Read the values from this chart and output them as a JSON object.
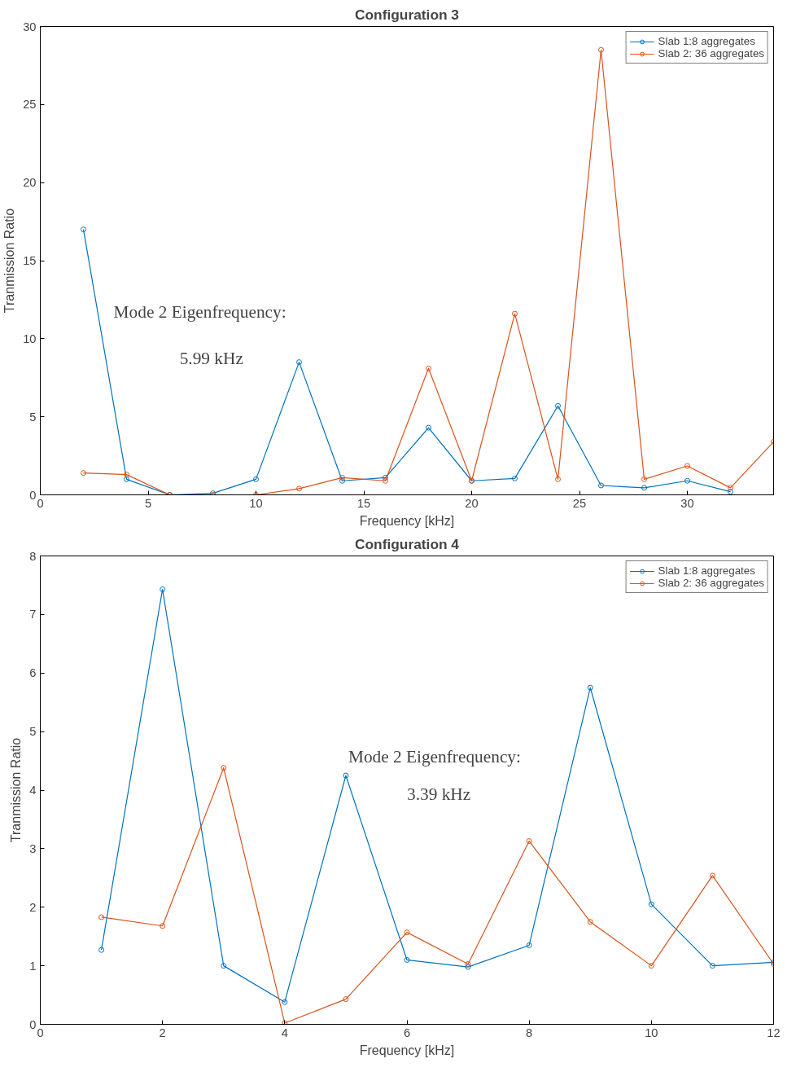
{
  "chart_data": [
    {
      "type": "line",
      "title": "Configuration 3",
      "xlabel": "Frequency [kHz]",
      "ylabel": "Tranmission Ratio",
      "x": [
        2,
        4,
        6,
        8,
        10,
        12,
        14,
        16,
        18,
        20,
        22,
        24,
        26,
        28,
        30,
        32,
        34
      ],
      "series": [
        {
          "name": "Slab 1:8 aggregates",
          "color": "#0072bd",
          "values": [
            17.0,
            1.0,
            0.0,
            0.1,
            1.0,
            8.5,
            0.9,
            1.1,
            4.3,
            0.9,
            1.05,
            5.7,
            0.6,
            0.45,
            0.9,
            0.2,
            null
          ]
        },
        {
          "name": "Slab 2: 36 aggregates",
          "color": "#d95319",
          "values": [
            1.4,
            1.3,
            0.0,
            0.0,
            0.0,
            0.4,
            1.1,
            0.9,
            8.1,
            0.9,
            11.6,
            1.0,
            28.5,
            1.0,
            1.85,
            0.45,
            3.4
          ]
        }
      ],
      "xlim": [
        0,
        34
      ],
      "ylim": [
        0,
        30
      ],
      "xticks": [
        0,
        5,
        10,
        15,
        20,
        25,
        30
      ],
      "yticks": [
        0,
        5,
        10,
        15,
        20,
        25,
        30
      ],
      "annotations": [
        "Mode 2 Eigenfrequency:",
        "5.99 kHz"
      ],
      "marker": "circle",
      "line_style": "solid",
      "grid": false,
      "legend": "top right"
    },
    {
      "type": "line",
      "title": "Configuration 4",
      "xlabel": "Frequency [kHz]",
      "ylabel": "Tranmission Ratio",
      "x": [
        1,
        2,
        3,
        4,
        5,
        6,
        7,
        8,
        9,
        10,
        11,
        12
      ],
      "series": [
        {
          "name": "Slab 1:8 aggregates",
          "color": "#0072bd",
          "values": [
            1.27,
            7.43,
            1.0,
            0.38,
            4.25,
            1.1,
            0.98,
            1.35,
            5.75,
            2.05,
            1.0,
            1.06
          ]
        },
        {
          "name": "Slab 2: 36 aggregates",
          "color": "#d95319",
          "values": [
            1.83,
            1.68,
            4.38,
            0.02,
            0.43,
            1.57,
            1.03,
            3.13,
            1.75,
            1.0,
            2.54,
            1.03
          ]
        }
      ],
      "xlim": [
        0,
        12
      ],
      "ylim": [
        0,
        8
      ],
      "xticks": [
        0,
        2,
        4,
        6,
        8,
        10,
        12
      ],
      "yticks": [
        0,
        1,
        2,
        3,
        4,
        5,
        6,
        7,
        8
      ],
      "annotations": [
        "Mode 2 Eigenfrequency:",
        "3.39 kHz"
      ],
      "marker": "circle",
      "line_style": "solid",
      "grid": false,
      "legend": "top right"
    }
  ]
}
